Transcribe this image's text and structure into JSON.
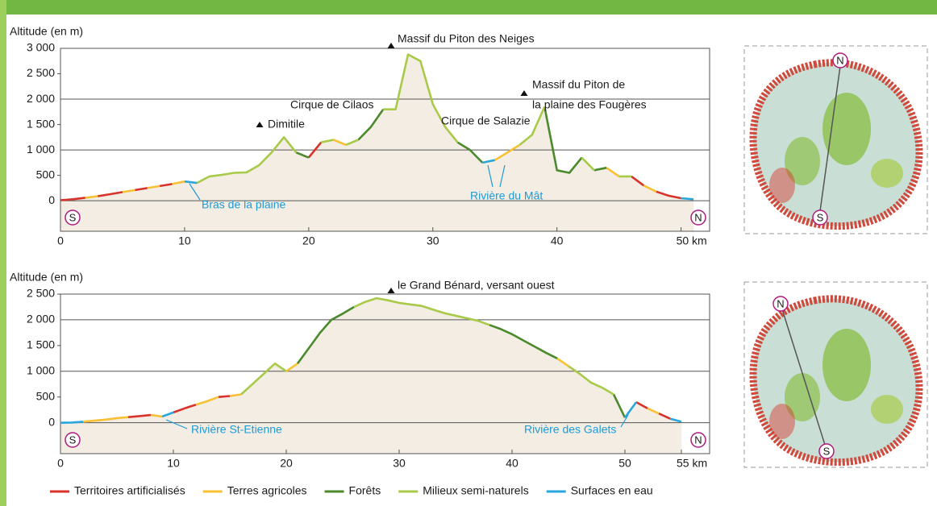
{
  "chart_data": [
    {
      "type": "line",
      "y_label": "Altitude (en m)",
      "xlim": [
        0,
        52.3
      ],
      "ylim": [
        -600,
        3000
      ],
      "xticks": [
        0,
        10,
        20,
        30,
        40,
        {
          "value": 50,
          "label": "50 km"
        }
      ],
      "yticks": [
        0,
        500,
        {
          "value": 1000,
          "label": "1 000"
        },
        {
          "value": 1500,
          "label": "1 500"
        },
        {
          "value": 2000,
          "label": "2 000"
        },
        {
          "value": 2500,
          "label": "2 500"
        },
        {
          "value": 3000,
          "label": "3 000"
        }
      ],
      "grid": true,
      "area_color": "#f3ede3",
      "legend": "bottom",
      "start_label": "S",
      "end_label": "N",
      "peaks": [
        "Massif du Piton des Neiges",
        "Dimitile",
        "Cirque de Cilaos",
        "Cirque de Salazie",
        "Massif du Piton de",
        "la plaine des Fougères"
      ],
      "rivers": [
        "Bras de la plaine",
        "Rivière du Mât"
      ],
      "series": [
        {
          "name": "Territoires artificialisés",
          "color": "#d9322b",
          "x": [
            0,
            1,
            2,
            null,
            3,
            4,
            5,
            null,
            6,
            7,
            null,
            8,
            9,
            null,
            20,
            21,
            null,
            46,
            47,
            null,
            48,
            49,
            50
          ],
          "values": [
            10,
            30,
            60,
            null,
            90,
            130,
            170,
            null,
            210,
            250,
            null,
            290,
            330,
            null,
            850,
            1150,
            null,
            480,
            300,
            null,
            180,
            100,
            50
          ]
        },
        {
          "name": "Terres agricoles",
          "color": "#f8c133",
          "x": [
            2,
            3,
            null,
            5,
            6,
            null,
            7,
            8,
            null,
            9,
            10,
            null,
            22,
            23,
            null,
            35,
            36,
            37,
            null,
            44,
            45,
            null,
            47,
            48
          ],
          "values": [
            60,
            90,
            null,
            170,
            210,
            null,
            250,
            290,
            null,
            330,
            380,
            null,
            1200,
            1100,
            null,
            800,
            950,
            1100,
            null,
            650,
            480,
            null,
            300,
            180
          ]
        },
        {
          "name": "Forêts",
          "color": "#4b8a2c",
          "x": [
            19,
            20,
            null,
            24,
            25,
            26,
            null,
            32,
            33,
            34,
            null,
            39,
            40,
            41,
            42,
            null,
            43,
            44
          ],
          "values": [
            950,
            850,
            null,
            1200,
            1450,
            1800,
            null,
            1150,
            1000,
            750,
            null,
            1850,
            600,
            550,
            850,
            null,
            600,
            650
          ]
        },
        {
          "name": "Milieux semi-naturels",
          "color": "#a8ca48",
          "x": [
            11,
            12,
            13,
            14,
            15,
            16,
            17,
            18,
            19,
            null,
            21,
            22,
            null,
            23,
            24,
            null,
            26,
            27,
            28,
            29,
            30,
            31,
            32,
            null,
            37,
            38,
            39,
            null,
            42,
            43,
            null,
            45,
            46
          ],
          "values": [
            350,
            480,
            510,
            550,
            560,
            700,
            950,
            1250,
            950,
            null,
            1150,
            1200,
            null,
            1100,
            1200,
            null,
            1800,
            1800,
            2880,
            2750,
            1900,
            1450,
            1150,
            null,
            1100,
            1300,
            1850,
            null,
            850,
            600,
            null,
            480,
            480
          ]
        },
        {
          "name": "Surfaces en eau",
          "color": "#29a7dd",
          "x": [
            10,
            11,
            null,
            34,
            35,
            null,
            50,
            51
          ],
          "values": [
            380,
            350,
            null,
            750,
            800,
            null,
            50,
            30
          ]
        }
      ]
    },
    {
      "type": "line",
      "y_label": "Altitude (en m)",
      "xlim": [
        0,
        57.5
      ],
      "ylim": [
        -600,
        2500
      ],
      "xticks": [
        0,
        10,
        20,
        30,
        40,
        50,
        {
          "value": 55,
          "label": "55 km"
        }
      ],
      "yticks": [
        0,
        500,
        {
          "value": 1000,
          "label": "1 000"
        },
        {
          "value": 1500,
          "label": "1 500"
        },
        {
          "value": 2000,
          "label": "2 000"
        },
        {
          "value": 2500,
          "label": "2 500"
        }
      ],
      "grid": true,
      "area_color": "#f3ede3",
      "start_label": "S",
      "end_label": "N",
      "peaks": [
        "le Grand Bénard, versant ouest"
      ],
      "rivers": [
        "Rivière St-Etienne",
        "Rivière des Galets"
      ],
      "series": [
        {
          "color": "#d9322b",
          "x": [
            6,
            7,
            8,
            null,
            10,
            11,
            12,
            null,
            14,
            15,
            null,
            51,
            52,
            null,
            53,
            54
          ],
          "values": [
            110,
            130,
            150,
            null,
            200,
            280,
            350,
            null,
            500,
            520,
            null,
            400,
            280,
            null,
            180,
            80
          ]
        },
        {
          "color": "#f8c133",
          "x": [
            2,
            3,
            4,
            5,
            6,
            null,
            8,
            9,
            null,
            12,
            13,
            14,
            null,
            15,
            16,
            null,
            20,
            21,
            null,
            44,
            45,
            null,
            52,
            53
          ],
          "values": [
            20,
            40,
            60,
            90,
            110,
            null,
            150,
            120,
            null,
            350,
            420,
            500,
            null,
            520,
            550,
            null,
            1000,
            1150,
            null,
            1250,
            1100,
            null,
            280,
            180
          ]
        },
        {
          "color": "#4b8a2c",
          "x": [
            21,
            22,
            23,
            24,
            25,
            26,
            null,
            38,
            39,
            40,
            41,
            42,
            43,
            44,
            null,
            49,
            50
          ],
          "values": [
            1150,
            1450,
            1750,
            2000,
            2120,
            2250,
            null,
            1900,
            1820,
            1720,
            1600,
            1480,
            1360,
            1250,
            null,
            550,
            100
          ]
        },
        {
          "color": "#a8ca48",
          "x": [
            16,
            17,
            18,
            19,
            20,
            null,
            26,
            27,
            28,
            29,
            30,
            31,
            32,
            33,
            34,
            35,
            36,
            37,
            38,
            null,
            45,
            46,
            47,
            48,
            49
          ],
          "values": [
            550,
            750,
            950,
            1150,
            1000,
            null,
            2250,
            2350,
            2420,
            2380,
            2330,
            2300,
            2270,
            2200,
            2130,
            2080,
            2030,
            1980,
            1900,
            null,
            1100,
            950,
            780,
            680,
            550
          ]
        },
        {
          "color": "#29a7dd",
          "x": [
            0,
            1,
            2,
            null,
            9,
            10,
            null,
            50,
            51,
            null,
            54,
            55
          ],
          "values": [
            0,
            5,
            20,
            null,
            120,
            200,
            null,
            100,
            400,
            null,
            80,
            20
          ]
        }
      ]
    }
  ]
}
